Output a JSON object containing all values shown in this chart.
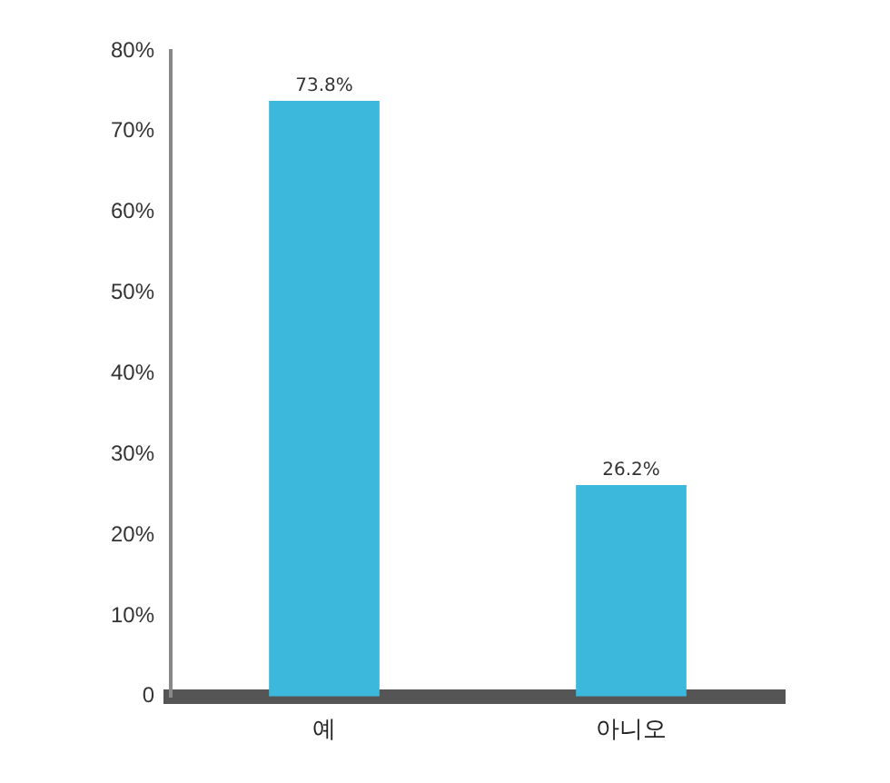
{
  "chart_data": {
    "type": "bar",
    "categories": [
      "예",
      "아니오"
    ],
    "values": [
      73.8,
      26.2
    ],
    "color": "#3bb8dc",
    "value_labels": [
      "73.8%",
      "26.2%"
    ],
    "ylim": [
      0,
      80
    ],
    "yticks": [
      {
        "value": 0,
        "label": "0"
      },
      {
        "value": 10,
        "label": "10%"
      },
      {
        "value": 20,
        "label": "20%"
      },
      {
        "value": 30,
        "label": "30%"
      },
      {
        "value": 40,
        "label": "40%"
      },
      {
        "value": 50,
        "label": "50%"
      },
      {
        "value": 60,
        "label": "60%"
      },
      {
        "value": 70,
        "label": "70%"
      },
      {
        "value": 80,
        "label": "80%"
      }
    ],
    "grid": false,
    "legend": false
  }
}
